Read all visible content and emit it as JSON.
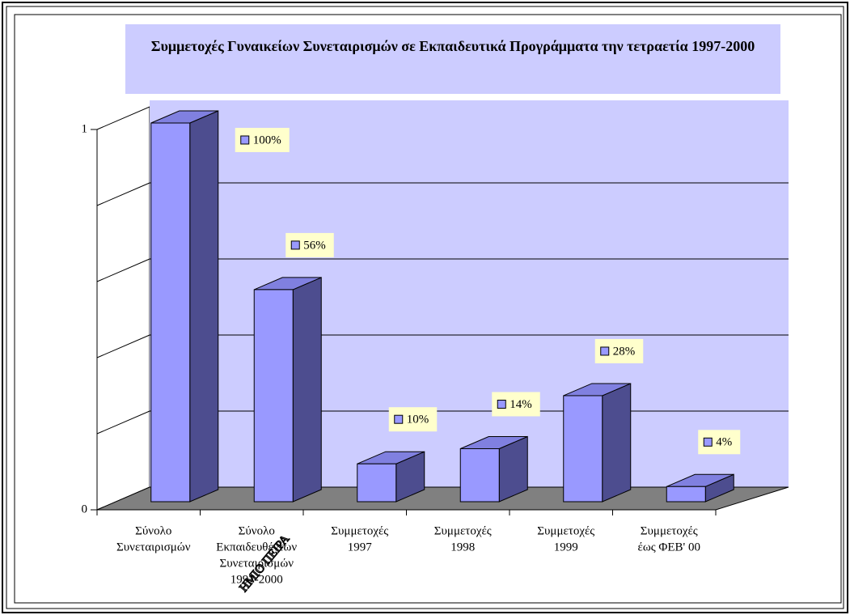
{
  "chart_data": {
    "type": "bar3d",
    "title": "Συμμετοχές Γυναικείων Συνεταιρισμών σε Εκπαιδευτικά Προγράμματα την τετραετία 1997-2000",
    "categories": [
      [
        "Σύνολο",
        "Συνεταιρισμών"
      ],
      [
        "Σύνολο",
        "Εκπαιδευθέντων",
        "Συνεταιρισμών",
        "1997-2000"
      ],
      [
        "Συμμετοχές",
        "1997"
      ],
      [
        "Συμμετοχές",
        "1998"
      ],
      [
        "Συμμετοχές",
        "1999"
      ],
      [
        "Συμμετοχές",
        "έως ΦΕΒ' 00"
      ]
    ],
    "values": [
      1,
      0.56,
      0.1,
      0.14,
      0.28,
      0.04
    ],
    "value_labels": [
      "100%",
      "56%",
      "10%",
      "14%",
      "28%",
      "4%"
    ],
    "color": "#9999ff",
    "ylim": [
      0,
      1
    ],
    "yticks": [
      0,
      1
    ],
    "minor_yticks": [
      0.2,
      0.4,
      0.6,
      0.8
    ],
    "grid": true,
    "watermark": "ΗΜΙΟ ΠΕΙΡΑ"
  }
}
